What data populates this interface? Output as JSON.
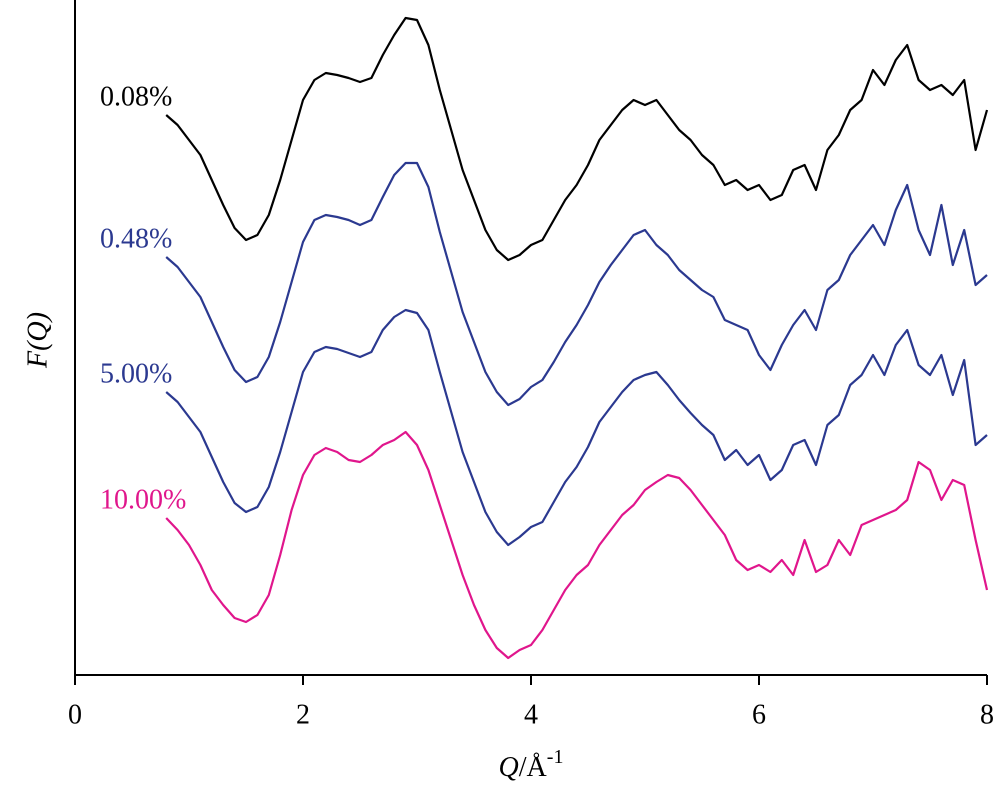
{
  "chart_data": {
    "type": "line",
    "y_label": "F(Q)",
    "x_label": {
      "symbol": "Q",
      "unit": "/Å",
      "exponent": "-1"
    },
    "xlim": [
      0,
      8
    ],
    "xticks": [
      0,
      2,
      4,
      6,
      8
    ],
    "ylim": [
      0,
      670
    ],
    "x": [
      0.8,
      0.9,
      1.0,
      1.1,
      1.2,
      1.3,
      1.4,
      1.5,
      1.6,
      1.7,
      1.8,
      1.9,
      2.0,
      2.1,
      2.2,
      2.3,
      2.4,
      2.5,
      2.6,
      2.7,
      2.8,
      2.9,
      3.0,
      3.1,
      3.2,
      3.3,
      3.4,
      3.5,
      3.6,
      3.7,
      3.8,
      3.9,
      4.0,
      4.1,
      4.2,
      4.3,
      4.4,
      4.5,
      4.6,
      4.7,
      4.8,
      4.9,
      5.0,
      5.1,
      5.2,
      5.3,
      5.4,
      5.5,
      5.6,
      5.7,
      5.8,
      5.9,
      6.0,
      6.1,
      6.2,
      6.3,
      6.4,
      6.5,
      6.6,
      6.7,
      6.8,
      6.9,
      7.0,
      7.1,
      7.2,
      7.3,
      7.4,
      7.5,
      7.6,
      7.7,
      7.8,
      7.9,
      8.0
    ],
    "series": [
      {
        "name": "0.08%",
        "color": "#000000",
        "values": [
          560,
          550,
          535,
          520,
          495,
          470,
          447,
          435,
          440,
          460,
          495,
          535,
          575,
          595,
          602,
          600,
          597,
          593,
          597,
          620,
          640,
          657,
          655,
          630,
          585,
          545,
          505,
          475,
          445,
          425,
          415,
          420,
          430,
          435,
          455,
          475,
          490,
          510,
          535,
          550,
          565,
          575,
          570,
          575,
          560,
          545,
          535,
          520,
          510,
          490,
          495,
          485,
          490,
          475,
          480,
          505,
          510,
          485,
          525,
          540,
          565,
          575,
          605,
          590,
          615,
          630,
          595,
          585,
          590,
          580,
          595,
          525,
          565
        ]
      },
      {
        "name": "0.48%",
        "color": "#2b3990",
        "values": [
          418,
          408,
          393,
          378,
          353,
          328,
          305,
          293,
          298,
          318,
          353,
          393,
          433,
          455,
          460,
          458,
          455,
          450,
          455,
          478,
          500,
          512,
          512,
          488,
          443,
          403,
          363,
          333,
          303,
          283,
          270,
          276,
          288,
          295,
          313,
          333,
          350,
          370,
          393,
          410,
          425,
          440,
          445,
          430,
          420,
          405,
          395,
          385,
          378,
          355,
          350,
          345,
          320,
          305,
          330,
          350,
          365,
          345,
          385,
          395,
          420,
          435,
          450,
          430,
          465,
          490,
          445,
          420,
          470,
          410,
          445,
          390,
          400
        ]
      },
      {
        "name": "5.00%",
        "color": "#2b3990",
        "values": [
          283,
          273,
          258,
          243,
          218,
          193,
          172,
          163,
          168,
          188,
          223,
          263,
          303,
          323,
          328,
          326,
          322,
          318,
          323,
          345,
          358,
          365,
          362,
          345,
          303,
          263,
          223,
          193,
          163,
          143,
          130,
          138,
          148,
          153,
          173,
          193,
          208,
          228,
          253,
          268,
          283,
          295,
          300,
          303,
          290,
          275,
          262,
          250,
          240,
          215,
          225,
          210,
          220,
          195,
          205,
          230,
          235,
          210,
          250,
          260,
          290,
          300,
          320,
          300,
          330,
          345,
          310,
          300,
          320,
          280,
          315,
          230,
          240
        ]
      },
      {
        "name": "10.00%",
        "color": "#e0168c",
        "values": [
          157,
          145,
          130,
          110,
          85,
          70,
          57,
          53,
          60,
          80,
          120,
          165,
          200,
          220,
          227,
          223,
          215,
          213,
          220,
          230,
          235,
          243,
          230,
          205,
          170,
          135,
          100,
          70,
          45,
          27,
          17,
          25,
          30,
          45,
          65,
          85,
          100,
          110,
          130,
          145,
          160,
          170,
          185,
          193,
          200,
          197,
          185,
          170,
          155,
          140,
          115,
          105,
          110,
          103,
          115,
          100,
          135,
          103,
          110,
          135,
          120,
          150,
          155,
          160,
          165,
          175,
          213,
          205,
          175,
          195,
          190,
          135,
          85
        ]
      }
    ]
  }
}
